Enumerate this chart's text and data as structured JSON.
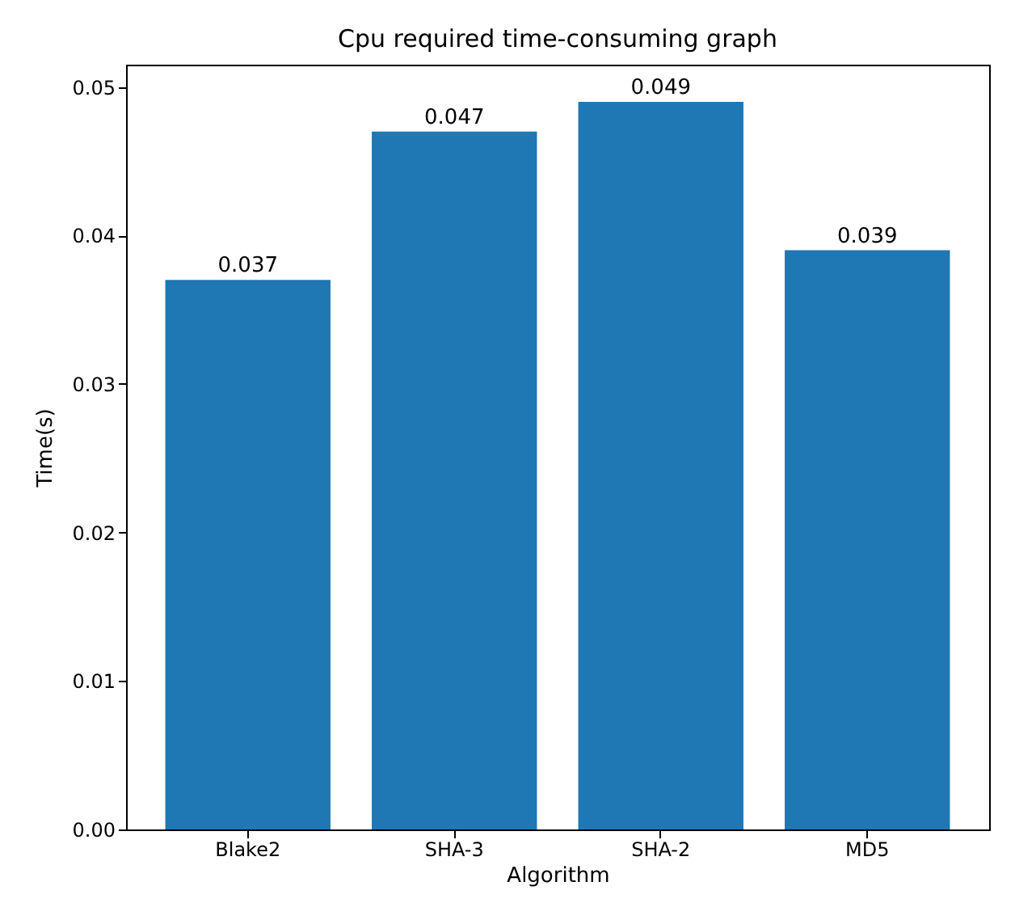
{
  "chart_data": {
    "type": "bar",
    "title": "Cpu required time-consuming graph",
    "xlabel": "Algorithm",
    "ylabel": "Time(s)",
    "categories": [
      "Blake2",
      "SHA-3",
      "SHA-2",
      "MD5"
    ],
    "values": [
      0.037,
      0.047,
      0.049,
      0.039
    ],
    "color": "#1f77b4",
    "ylim": [
      0,
      0.0515
    ],
    "yticks": [
      {
        "value": 0,
        "label": "0.00"
      },
      {
        "value": 0.01,
        "label": "0.01"
      },
      {
        "value": 0.02,
        "label": "0.02"
      },
      {
        "value": 0.03,
        "label": "0.03"
      },
      {
        "value": 0.04,
        "label": "0.04"
      },
      {
        "value": 0.05,
        "label": "0.05"
      }
    ],
    "data_labels": true,
    "grid": false
  }
}
